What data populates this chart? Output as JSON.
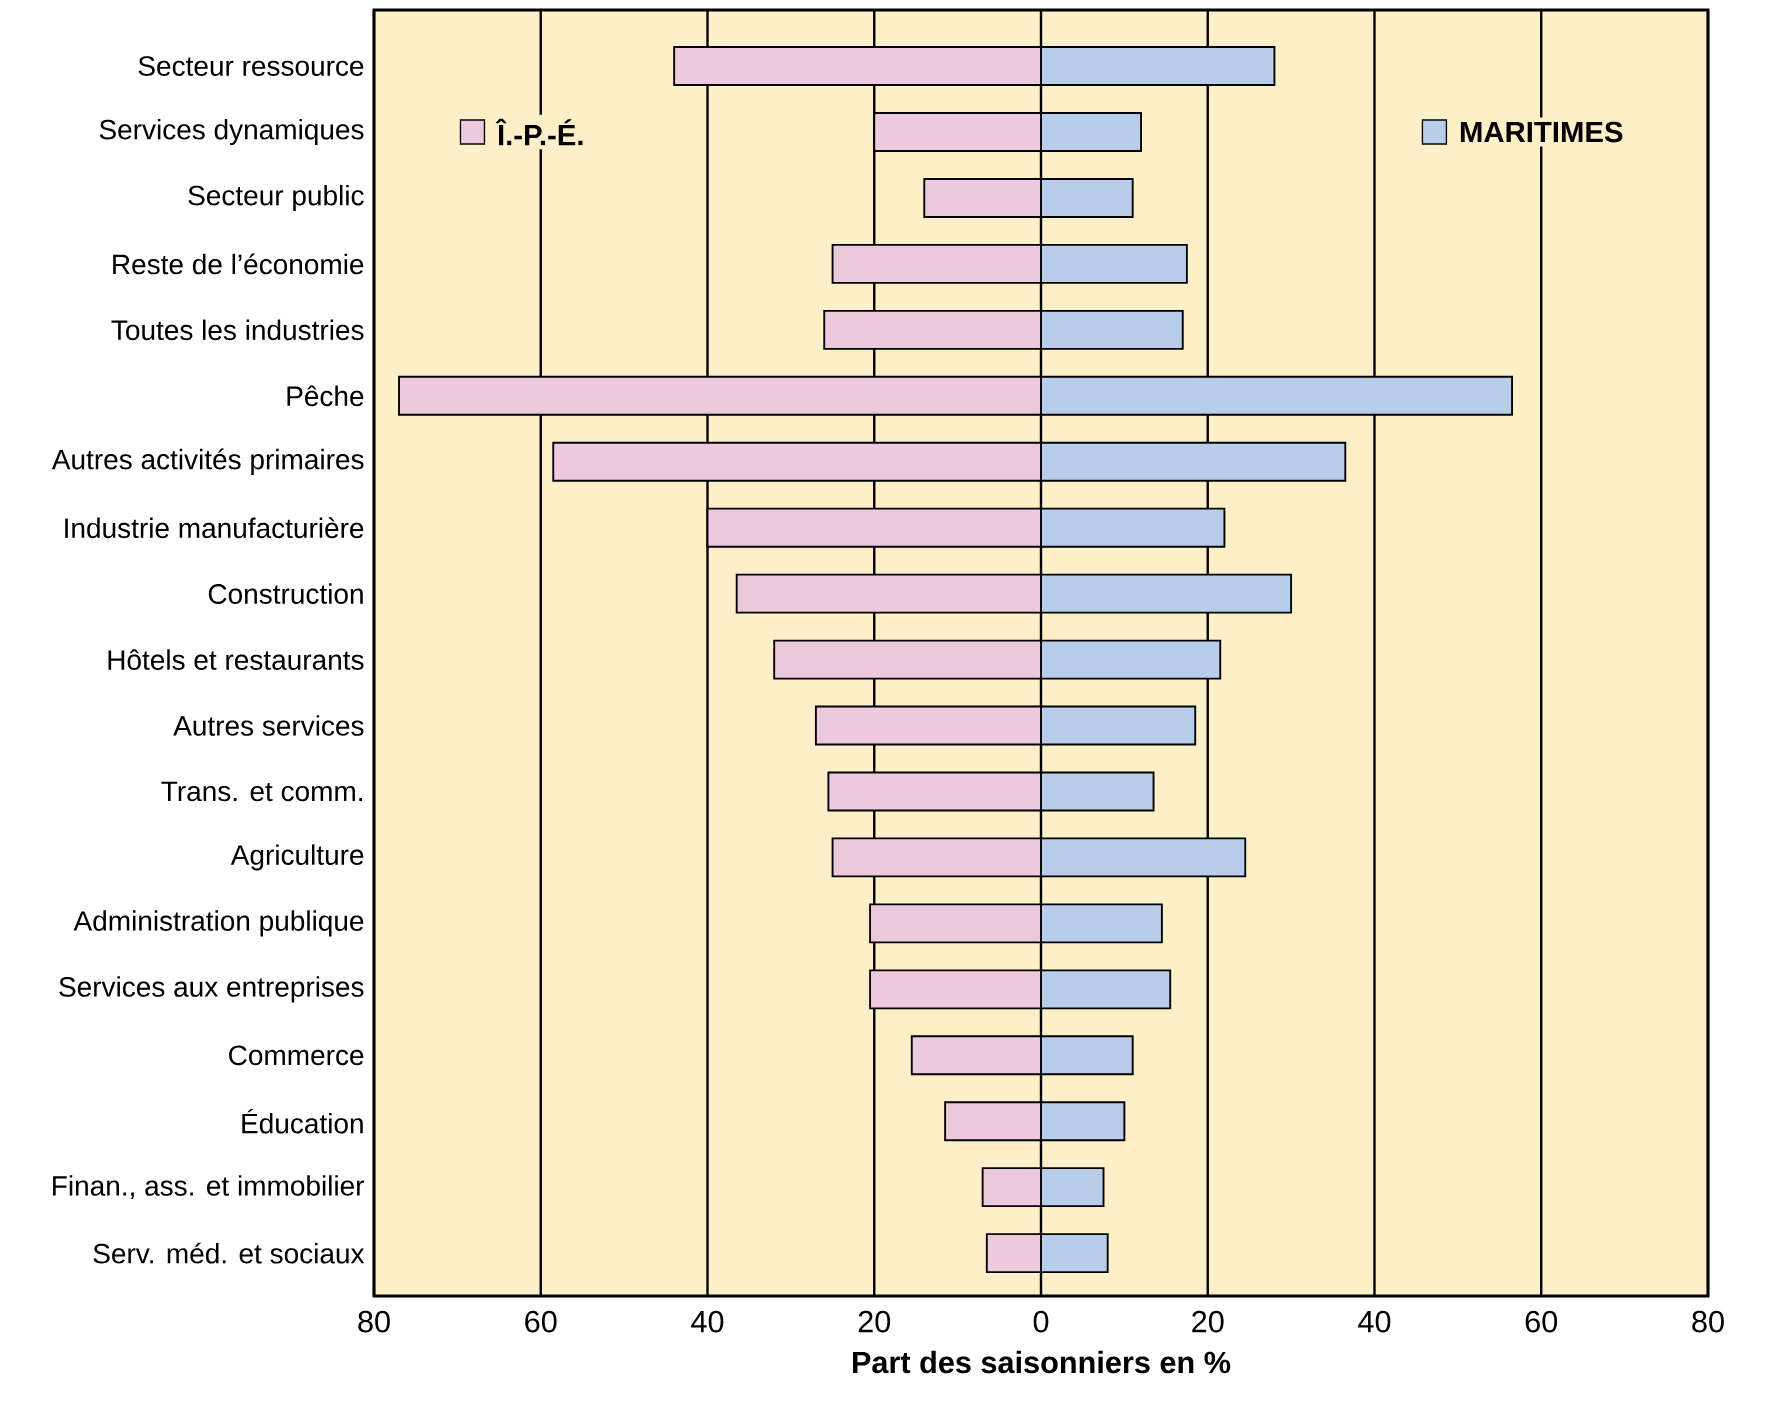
{
  "chart_data": {
    "type": "bar",
    "orientation": "horizontal",
    "xlabel": "Part des saisonniers en %",
    "categories": [
      "Secteur ressource",
      "Services dynamiques",
      "Secteur public",
      "Reste de l’économie",
      "Toutes les industries",
      "Pêche",
      "Autres activités primaires",
      "Industrie manufacturière",
      "Construction",
      "Hôtels et restaurants",
      "Autres services",
      "Trans. et comm.",
      "Agriculture",
      "Administration publique",
      "Services aux entreprises",
      "Commerce",
      "Éducation",
      "Finan., ass. et immobilier",
      "Serv. méd. et sociaux"
    ],
    "series": [
      {
        "name": "Î.-P.-É.",
        "color": "#ecc9dc",
        "values": [
          -44,
          -20,
          -14,
          -25,
          -26,
          -77,
          -58.5,
          -40,
          -36.5,
          -32,
          -27,
          -25.5,
          -25,
          -20.5,
          -20.5,
          -15.5,
          -11.5,
          -7,
          -6.5
        ]
      },
      {
        "name": "MARITIMES",
        "color": "#b7cdea",
        "values": [
          28,
          12,
          11,
          17.5,
          17,
          56.5,
          36.5,
          22,
          30,
          21.5,
          18.5,
          13.5,
          24.5,
          14.5,
          15.5,
          11,
          10,
          7.5,
          8
        ]
      }
    ],
    "xlim": [
      -80,
      80
    ],
    "xticks": [
      {
        "value": -80,
        "label": "80"
      },
      {
        "value": -60,
        "label": "60"
      },
      {
        "value": -40,
        "label": "40"
      },
      {
        "value": -20,
        "label": "20"
      },
      0,
      20,
      40,
      60,
      80
    ],
    "grid": "x",
    "stacked": true,
    "legend": "top"
  }
}
